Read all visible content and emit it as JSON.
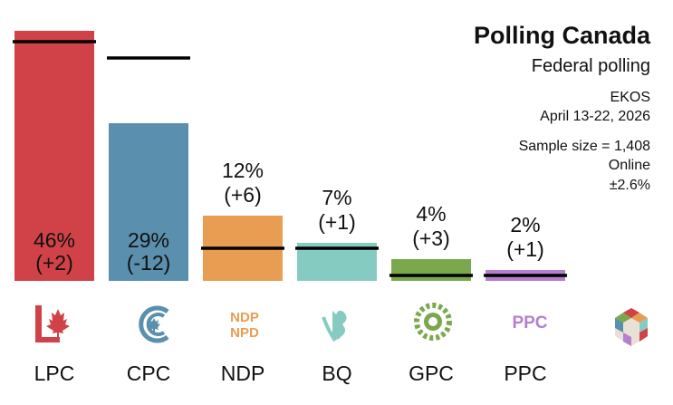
{
  "header": {
    "title": "Polling Canada",
    "subtitle": "Federal polling",
    "pollster": "EKOS",
    "dates": "April 13-22, 2026",
    "sample": "Sample size = 1,408",
    "method": "Online",
    "margin": "±2.6%"
  },
  "chart_data": {
    "type": "bar",
    "categories": [
      "LPC",
      "CPC",
      "NDP",
      "BQ",
      "GPC",
      "PPC"
    ],
    "values": [
      46,
      29,
      12,
      7,
      4,
      2
    ],
    "changes": [
      "(+2)",
      "(-12)",
      "(+6)",
      "(+1)",
      "(+3)",
      "(+1)"
    ],
    "previous": [
      44,
      41,
      6,
      6,
      1,
      1
    ],
    "value_labels": [
      "46%",
      "29%",
      "12%",
      "7%",
      "4%",
      "2%"
    ],
    "colors": [
      "#d04247",
      "#5a8fad",
      "#e89d52",
      "#86cbc2",
      "#7aa84d",
      "#b57fd0"
    ],
    "ylim": [
      0,
      46
    ],
    "grid": false,
    "legend": "none"
  },
  "logos": [
    "lpc-logo-icon",
    "cpc-logo-icon",
    "ndp-logo-icon",
    "bq-logo-icon",
    "gpc-logo-icon",
    "ppc-logo-icon",
    "polling-canada-logo-icon"
  ]
}
